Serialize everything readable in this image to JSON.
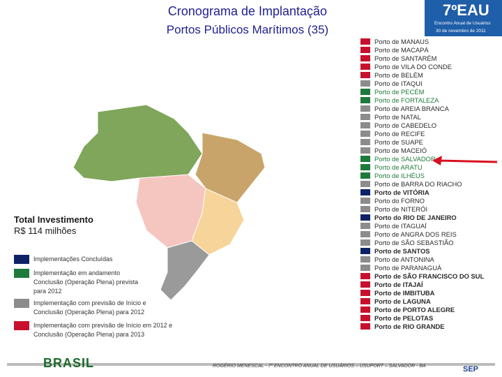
{
  "header": {
    "title": "Cronograma de Implantação",
    "subtitle": "Portos Públicos Marítimos (35)"
  },
  "event_logo": {
    "name": "7ºEAU",
    "line1": "Encontro Anual de Usuários",
    "line2": "30 de novembro de 2011"
  },
  "investment": {
    "label": "Total Investimento",
    "value": "R$ 114 milhões"
  },
  "legend": [
    {
      "lines": [
        "Implementações Concluídas"
      ],
      "color": "#0d2266"
    },
    {
      "lines": [
        "Implementação em andamento",
        "Conclusão (Operação Plena) prevista",
        "para 2012"
      ],
      "color": "#1e7a3a"
    },
    {
      "lines": [
        "Implementação com previsão de Início e",
        "Conclusão (Operação Plena) para 2012"
      ],
      "color": "#8c8c8c"
    },
    {
      "lines": [
        "Implementação com previsão de Início em 2012 e",
        "Conclusão (Operação Plena) para 2013"
      ],
      "color": "#c8102e"
    }
  ],
  "ports": [
    {
      "label": "Porto de MANAUS",
      "status": "red",
      "bold": false
    },
    {
      "label": "Porto de MACAPÁ",
      "status": "red",
      "bold": false
    },
    {
      "label": "Porto de SANTARÉM",
      "status": "red",
      "bold": false
    },
    {
      "label": "Porto de VILA DO CONDE",
      "status": "red",
      "bold": false
    },
    {
      "label": "Porto de BELÉM",
      "status": "red",
      "bold": false
    },
    {
      "label": "Porto de ITAQUI",
      "status": "gray",
      "bold": false
    },
    {
      "label": "Porto de PECÉM",
      "status": "green",
      "bold": false
    },
    {
      "label": "Porto de FORTALEZA",
      "status": "green",
      "bold": false
    },
    {
      "label": "Porto de AREIA BRANCA",
      "status": "gray",
      "bold": false
    },
    {
      "label": "Porto de NATAL",
      "status": "gray",
      "bold": false
    },
    {
      "label": "Porto de CABEDELO",
      "status": "gray",
      "bold": false
    },
    {
      "label": "Porto de RECIFE",
      "status": "gray",
      "bold": false
    },
    {
      "label": "Porto de SUAPE",
      "status": "gray",
      "bold": false
    },
    {
      "label": "Porto de MACEIÓ",
      "status": "gray",
      "bold": false
    },
    {
      "label": "Porto de SALVADOR",
      "status": "green",
      "bold": false
    },
    {
      "label": "Porto de ARATU",
      "status": "green",
      "bold": false
    },
    {
      "label": "Porto de ILHÉUS",
      "status": "green",
      "bold": false
    },
    {
      "label": "Porto de BARRA DO RIACHO",
      "status": "gray",
      "bold": false
    },
    {
      "label": "Porto de VITÓRIA",
      "status": "navy",
      "bold": true
    },
    {
      "label": "Porto do FORNO",
      "status": "gray",
      "bold": false
    },
    {
      "label": "Porto de NITERÓI",
      "status": "gray",
      "bold": false
    },
    {
      "label": "Porto do RIO DE JANEIRO",
      "status": "navy",
      "bold": true
    },
    {
      "label": "Porto de ITAGUAÍ",
      "status": "gray",
      "bold": false
    },
    {
      "label": "Porto de ANGRA DOS REIS",
      "status": "gray",
      "bold": false
    },
    {
      "label": "Porto de SÃO SEBASTIÃO",
      "status": "gray",
      "bold": false
    },
    {
      "label": "Porto de SANTOS",
      "status": "navy",
      "bold": true
    },
    {
      "label": "Porto de ANTONINA",
      "status": "gray",
      "bold": false
    },
    {
      "label": "Porto de PARANAGUÁ",
      "status": "gray",
      "bold": false
    },
    {
      "label": "Porto de SÃO FRANCISCO DO SUL",
      "status": "red",
      "bold": true
    },
    {
      "label": "Porto de ITAJAÍ",
      "status": "red",
      "bold": true
    },
    {
      "label": "Porto de IMBITUBA",
      "status": "red",
      "bold": true
    },
    {
      "label": "Porto de LAGUNA",
      "status": "red",
      "bold": true
    },
    {
      "label": "Porto de PORTO ALEGRE",
      "status": "red",
      "bold": true
    },
    {
      "label": "Porto de PELOTAS",
      "status": "red",
      "bold": true
    },
    {
      "label": "Porto de RIO GRANDE",
      "status": "red",
      "bold": true
    }
  ],
  "status_colors": {
    "red": "#c8102e",
    "gray": "#8c8c8c",
    "green": "#1e7a3a",
    "navy": "#0d2266"
  },
  "footer": "ROGÉRIO MENESCAL - 7º ENCONTRO ANUAL DE USUÁRIOS – USUPORT – SALVADOR - BA",
  "brasil_logo": "BRASIL",
  "sep_logo": "SEP"
}
